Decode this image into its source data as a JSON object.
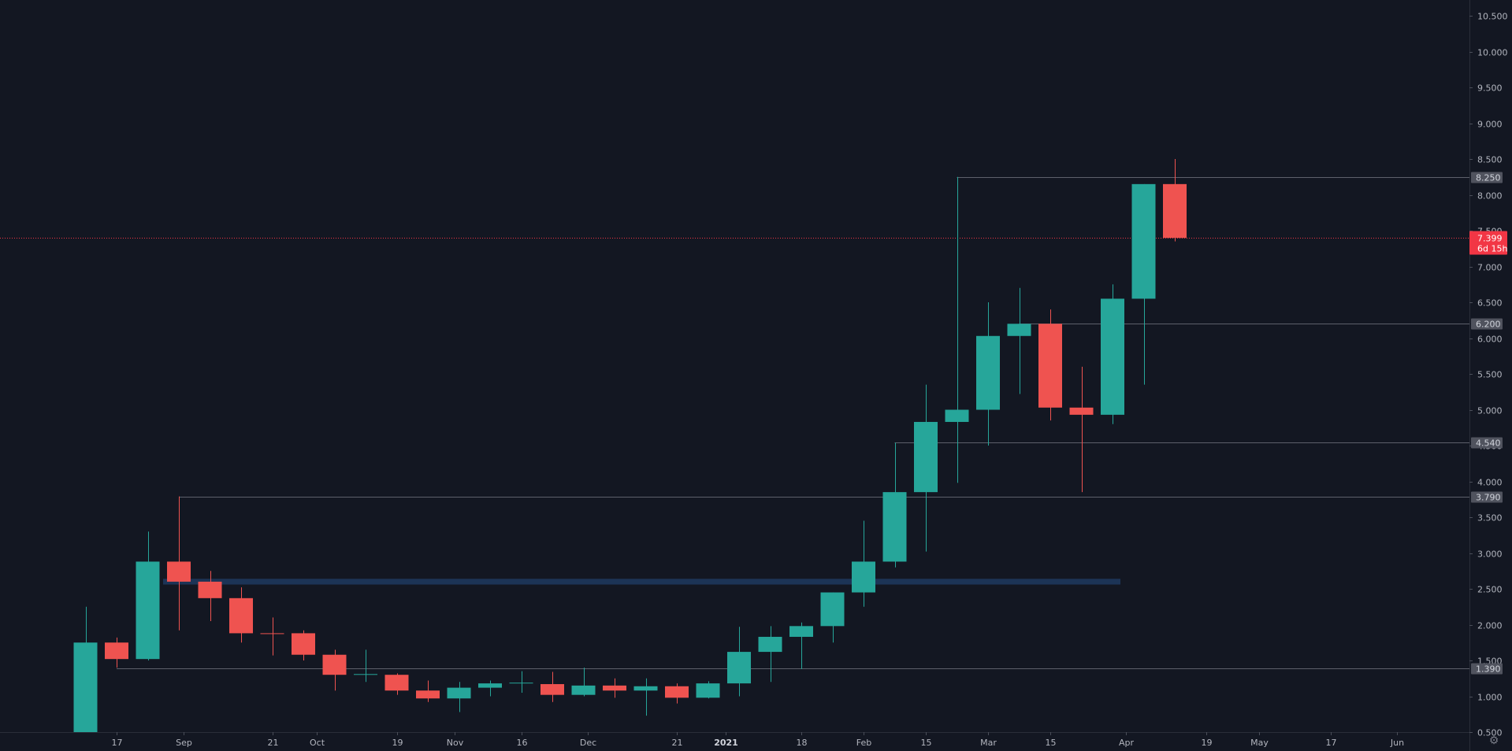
{
  "colors": {
    "background": "#131722",
    "up": "#26a69a",
    "down": "#ef5350",
    "level_line": "#5d606b",
    "zone": "#1e3a5f",
    "axis_text": "#b2b5be",
    "current_price": "#f23645"
  },
  "chart_data": {
    "type": "candlestick",
    "interval": "weekly",
    "y_axis": {
      "scale": "linear",
      "range": [
        0.25,
        10.75
      ],
      "ticks": [
        "0.500",
        "1.000",
        "1.500",
        "2.000",
        "2.500",
        "3.000",
        "3.500",
        "4.000",
        "4.500",
        "5.000",
        "5.500",
        "6.000",
        "6.500",
        "7.000",
        "7.500",
        "8.000",
        "8.500",
        "9.000",
        "9.500",
        "10.000",
        "10.500"
      ]
    },
    "x_axis": {
      "range": [
        "2020-07-26",
        "2021-06-15"
      ],
      "ticks": [
        {
          "date": "2020-08-17",
          "label": "17",
          "bold": false
        },
        {
          "date": "2020-09-01",
          "label": "Sep",
          "bold": false
        },
        {
          "date": "2020-09-21",
          "label": "21",
          "bold": false
        },
        {
          "date": "2020-10-01",
          "label": "Oct",
          "bold": false
        },
        {
          "date": "2020-10-19",
          "label": "19",
          "bold": false
        },
        {
          "date": "2020-11-01",
          "label": "Nov",
          "bold": false
        },
        {
          "date": "2020-11-16",
          "label": "16",
          "bold": false
        },
        {
          "date": "2020-12-01",
          "label": "Dec",
          "bold": false
        },
        {
          "date": "2020-12-21",
          "label": "21",
          "bold": false
        },
        {
          "date": "2021-01-01",
          "label": "2021",
          "bold": true
        },
        {
          "date": "2021-01-18",
          "label": "18",
          "bold": false
        },
        {
          "date": "2021-02-01",
          "label": "Feb",
          "bold": false
        },
        {
          "date": "2021-02-15",
          "label": "15",
          "bold": false
        },
        {
          "date": "2021-03-01",
          "label": "Mar",
          "bold": false
        },
        {
          "date": "2021-03-15",
          "label": "15",
          "bold": false
        },
        {
          "date": "2021-04-01",
          "label": "Apr",
          "bold": false
        },
        {
          "date": "2021-04-19",
          "label": "19",
          "bold": false
        },
        {
          "date": "2021-05-01",
          "label": "May",
          "bold": false
        },
        {
          "date": "2021-05-17",
          "label": "17",
          "bold": false
        },
        {
          "date": "2021-06-01",
          "label": "Jun",
          "bold": false
        }
      ]
    },
    "candles": [
      {
        "date": "2020-08-10",
        "open": 0.2,
        "high": 2.25,
        "low": 0.2,
        "close": 1.75
      },
      {
        "date": "2020-08-17",
        "open": 1.75,
        "high": 1.82,
        "low": 1.4,
        "close": 1.52
      },
      {
        "date": "2020-08-24",
        "open": 1.52,
        "high": 3.3,
        "low": 1.5,
        "close": 2.88
      },
      {
        "date": "2020-08-31",
        "open": 2.88,
        "high": 3.79,
        "low": 1.92,
        "close": 2.6
      },
      {
        "date": "2020-09-07",
        "open": 2.6,
        "high": 2.75,
        "low": 2.05,
        "close": 2.37
      },
      {
        "date": "2020-09-14",
        "open": 2.37,
        "high": 2.52,
        "low": 1.75,
        "close": 1.88
      },
      {
        "date": "2020-09-21",
        "open": 1.88,
        "high": 2.1,
        "low": 1.57,
        "close": 1.87
      },
      {
        "date": "2020-09-28",
        "open": 1.88,
        "high": 1.92,
        "low": 1.5,
        "close": 1.58
      },
      {
        "date": "2020-10-05",
        "open": 1.58,
        "high": 1.65,
        "low": 1.08,
        "close": 1.3
      },
      {
        "date": "2020-10-12",
        "open": 1.3,
        "high": 1.65,
        "low": 1.2,
        "close": 1.31
      },
      {
        "date": "2020-10-19",
        "open": 1.3,
        "high": 1.32,
        "low": 1.02,
        "close": 1.08
      },
      {
        "date": "2020-10-26",
        "open": 1.08,
        "high": 1.22,
        "low": 0.92,
        "close": 0.97
      },
      {
        "date": "2020-11-02",
        "open": 0.97,
        "high": 1.2,
        "low": 0.78,
        "close": 1.12
      },
      {
        "date": "2020-11-09",
        "open": 1.12,
        "high": 1.22,
        "low": 1.0,
        "close": 1.18
      },
      {
        "date": "2020-11-16",
        "open": 1.18,
        "high": 1.35,
        "low": 1.05,
        "close": 1.19
      },
      {
        "date": "2020-11-23",
        "open": 1.17,
        "high": 1.34,
        "low": 0.92,
        "close": 1.02
      },
      {
        "date": "2020-11-30",
        "open": 1.02,
        "high": 1.4,
        "low": 1.0,
        "close": 1.15
      },
      {
        "date": "2020-12-07",
        "open": 1.15,
        "high": 1.25,
        "low": 0.98,
        "close": 1.08
      },
      {
        "date": "2020-12-14",
        "open": 1.08,
        "high": 1.25,
        "low": 0.73,
        "close": 1.14
      },
      {
        "date": "2020-12-21",
        "open": 1.14,
        "high": 1.18,
        "low": 0.9,
        "close": 0.98
      },
      {
        "date": "2020-12-28",
        "open": 0.98,
        "high": 1.21,
        "low": 0.97,
        "close": 1.18
      },
      {
        "date": "2021-01-04",
        "open": 1.18,
        "high": 1.97,
        "low": 1.0,
        "close": 1.62
      },
      {
        "date": "2021-01-11",
        "open": 1.62,
        "high": 1.98,
        "low": 1.2,
        "close": 1.83
      },
      {
        "date": "2021-01-18",
        "open": 1.83,
        "high": 2.03,
        "low": 1.38,
        "close": 1.98
      },
      {
        "date": "2021-01-25",
        "open": 1.98,
        "high": 2.45,
        "low": 1.75,
        "close": 2.45
      },
      {
        "date": "2021-02-01",
        "open": 2.45,
        "high": 3.45,
        "low": 2.25,
        "close": 2.88
      },
      {
        "date": "2021-02-08",
        "open": 2.88,
        "high": 4.54,
        "low": 2.8,
        "close": 3.85
      },
      {
        "date": "2021-02-15",
        "open": 3.85,
        "high": 5.35,
        "low": 3.02,
        "close": 4.83
      },
      {
        "date": "2021-02-22",
        "open": 4.83,
        "high": 8.25,
        "low": 3.98,
        "close": 5.0
      },
      {
        "date": "2021-03-01",
        "open": 5.0,
        "high": 6.5,
        "low": 4.5,
        "close": 6.03
      },
      {
        "date": "2021-03-08",
        "open": 6.03,
        "high": 6.7,
        "low": 5.22,
        "close": 6.2
      },
      {
        "date": "2021-03-15",
        "open": 6.2,
        "high": 6.4,
        "low": 4.85,
        "close": 5.03
      },
      {
        "date": "2021-03-22",
        "open": 5.03,
        "high": 5.6,
        "low": 3.85,
        "close": 4.93
      },
      {
        "date": "2021-03-29",
        "open": 4.93,
        "high": 6.75,
        "low": 4.8,
        "close": 6.55
      },
      {
        "date": "2021-04-05",
        "open": 6.55,
        "high": 8.15,
        "low": 5.35,
        "close": 8.15
      },
      {
        "date": "2021-04-12",
        "open": 8.15,
        "high": 8.5,
        "low": 7.35,
        "close": 7.399
      }
    ],
    "levels": [
      {
        "price": 8.25,
        "label": "8.250",
        "from": "2021-02-22"
      },
      {
        "price": 6.2,
        "label": "6.200",
        "from": "2021-03-08"
      },
      {
        "price": 4.54,
        "label": "4.540",
        "from": "2021-02-08"
      },
      {
        "price": 3.79,
        "label": "3.790",
        "from": "2020-08-31"
      },
      {
        "price": 1.39,
        "label": "1.390",
        "from": "2020-08-17"
      }
    ],
    "zone": {
      "from": "2020-08-31",
      "to": "2021-03-29",
      "price_low": 2.56,
      "price_high": 2.64
    },
    "current_price": {
      "price": 7.399,
      "label": "7.399",
      "countdown": "6d 15h"
    }
  }
}
